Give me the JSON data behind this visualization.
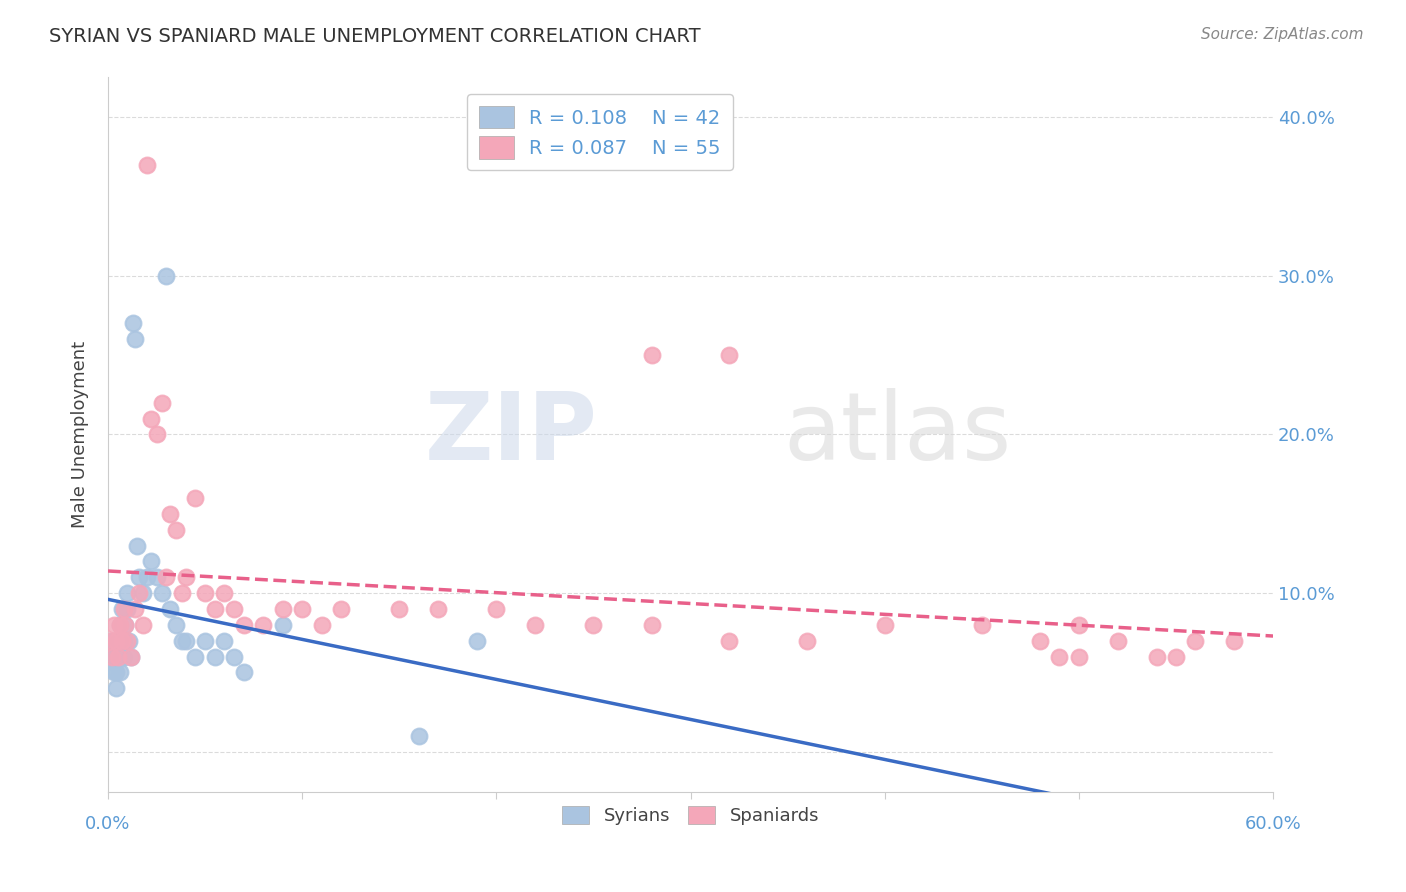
{
  "title": "SYRIAN VS SPANIARD MALE UNEMPLOYMENT CORRELATION CHART",
  "source": "Source: ZipAtlas.com",
  "ylabel": "Male Unemployment",
  "watermark_zip": "ZIP",
  "watermark_atlas": "atlas",
  "legend": {
    "syrian_R": "0.108",
    "syrian_N": "42",
    "spaniard_R": "0.087",
    "spaniard_N": "55"
  },
  "yticks": [
    0.0,
    0.1,
    0.2,
    0.3,
    0.4
  ],
  "ytick_labels": [
    "",
    "10.0%",
    "20.0%",
    "30.0%",
    "40.0%"
  ],
  "xlim": [
    0.0,
    0.6
  ],
  "ylim": [
    -0.025,
    0.425
  ],
  "syrian_color": "#aac4e0",
  "spaniard_color": "#f4a7b9",
  "syrian_line_color": "#3a6bc4",
  "spaniard_line_color": "#e8608a",
  "background_color": "#ffffff",
  "syrians_x": [
    0.001,
    0.002,
    0.003,
    0.003,
    0.004,
    0.004,
    0.005,
    0.005,
    0.006,
    0.006,
    0.007,
    0.007,
    0.008,
    0.008,
    0.009,
    0.01,
    0.01,
    0.011,
    0.012,
    0.013,
    0.014,
    0.015,
    0.016,
    0.018,
    0.02,
    0.022,
    0.025,
    0.028,
    0.03,
    0.032,
    0.035,
    0.038,
    0.04,
    0.045,
    0.05,
    0.055,
    0.06,
    0.065,
    0.07,
    0.09,
    0.16,
    0.19
  ],
  "syrians_y": [
    0.06,
    0.07,
    0.05,
    0.06,
    0.04,
    0.05,
    0.06,
    0.07,
    0.05,
    0.08,
    0.06,
    0.09,
    0.07,
    0.06,
    0.08,
    0.1,
    0.09,
    0.07,
    0.06,
    0.27,
    0.26,
    0.13,
    0.11,
    0.1,
    0.11,
    0.12,
    0.11,
    0.1,
    0.3,
    0.09,
    0.08,
    0.07,
    0.07,
    0.06,
    0.07,
    0.06,
    0.07,
    0.06,
    0.05,
    0.08,
    0.01,
    0.07
  ],
  "spaniards_x": [
    0.001,
    0.002,
    0.003,
    0.004,
    0.005,
    0.006,
    0.007,
    0.008,
    0.009,
    0.01,
    0.012,
    0.014,
    0.016,
    0.018,
    0.02,
    0.022,
    0.025,
    0.028,
    0.03,
    0.032,
    0.035,
    0.038,
    0.04,
    0.045,
    0.05,
    0.055,
    0.06,
    0.065,
    0.07,
    0.08,
    0.09,
    0.1,
    0.11,
    0.12,
    0.15,
    0.17,
    0.2,
    0.22,
    0.25,
    0.28,
    0.32,
    0.36,
    0.4,
    0.45,
    0.48,
    0.5,
    0.52,
    0.54,
    0.56,
    0.58,
    0.28,
    0.32,
    0.49,
    0.5,
    0.55
  ],
  "spaniards_y": [
    0.07,
    0.06,
    0.08,
    0.07,
    0.06,
    0.08,
    0.07,
    0.09,
    0.08,
    0.07,
    0.06,
    0.09,
    0.1,
    0.08,
    0.37,
    0.21,
    0.2,
    0.22,
    0.11,
    0.15,
    0.14,
    0.1,
    0.11,
    0.16,
    0.1,
    0.09,
    0.1,
    0.09,
    0.08,
    0.08,
    0.09,
    0.09,
    0.08,
    0.09,
    0.09,
    0.09,
    0.09,
    0.08,
    0.08,
    0.08,
    0.07,
    0.07,
    0.08,
    0.08,
    0.07,
    0.08,
    0.07,
    0.06,
    0.07,
    0.07,
    0.25,
    0.25,
    0.06,
    0.06,
    0.06
  ]
}
